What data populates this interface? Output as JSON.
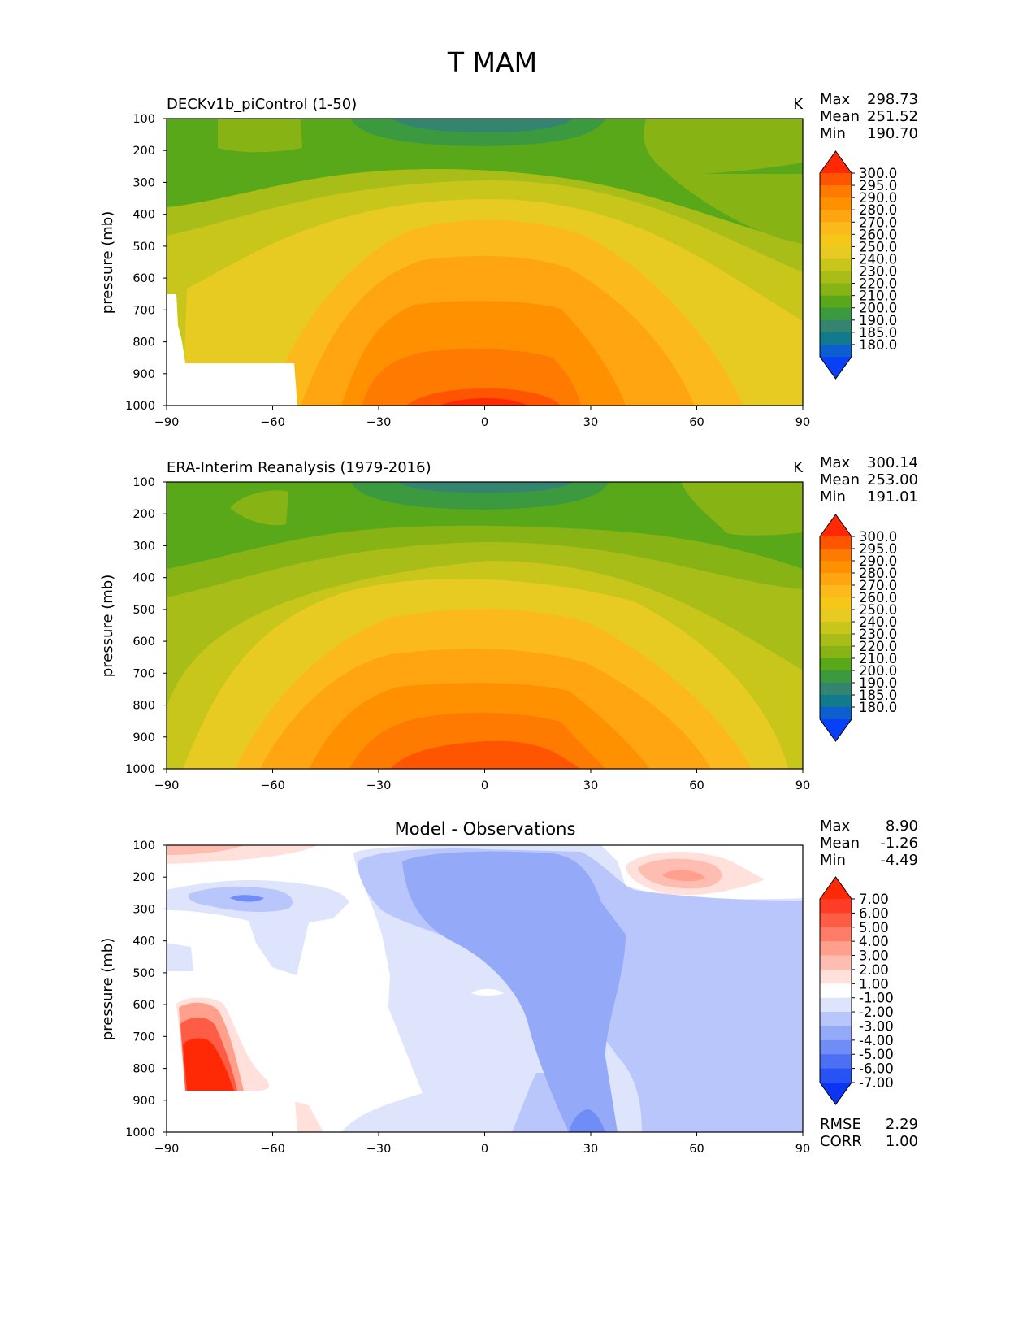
{
  "figure": {
    "title": "T MAM"
  },
  "chart_data": [
    {
      "type": "heatmap",
      "title": "DECKv1b_piControl (1-50)",
      "units": "K",
      "ylabel": "pressure (mb)",
      "xlabel": "",
      "x_ticks": [
        "−90",
        "−60",
        "−30",
        "0",
        "30",
        "60",
        "90"
      ],
      "y_ticks": [
        "100",
        "200",
        "300",
        "400",
        "500",
        "600",
        "700",
        "800",
        "900",
        "1000"
      ],
      "xlim": [
        -90,
        90
      ],
      "ylim": [
        1000,
        100
      ],
      "stats": [
        {
          "label": "Max",
          "value": "298.73"
        },
        {
          "label": "Mean",
          "value": "251.52"
        },
        {
          "label": "Min",
          "value": "190.70"
        }
      ],
      "colorbar": {
        "levels": [
          "300.0",
          "295.0",
          "290.0",
          "280.0",
          "270.0",
          "260.0",
          "250.0",
          "240.0",
          "230.0",
          "220.0",
          "210.0",
          "200.0",
          "190.0",
          "185.0",
          "180.0"
        ],
        "colors": [
          "#ff2a05",
          "#ff5500",
          "#ff7a00",
          "#ff9100",
          "#ffa512",
          "#fcb91c",
          "#f5c718",
          "#e8cb22",
          "#c9c61b",
          "#a9bd19",
          "#87b315",
          "#58a81a",
          "#3b9a40",
          "#338570",
          "#117a8c",
          "#0d5fcf",
          "#0840f5"
        ]
      },
      "contours": {
        "min": 190.7,
        "max": 298.73
      }
    },
    {
      "type": "heatmap",
      "title": "ERA-Interim Reanalysis (1979-2016)",
      "units": "K",
      "ylabel": "pressure (mb)",
      "xlabel": "",
      "x_ticks": [
        "−90",
        "−60",
        "−30",
        "0",
        "30",
        "60",
        "90"
      ],
      "y_ticks": [
        "100",
        "200",
        "300",
        "400",
        "500",
        "600",
        "700",
        "800",
        "900",
        "1000"
      ],
      "xlim": [
        -90,
        90
      ],
      "ylim": [
        1000,
        100
      ],
      "stats": [
        {
          "label": "Max",
          "value": "300.14"
        },
        {
          "label": "Mean",
          "value": "253.00"
        },
        {
          "label": "Min",
          "value": "191.01"
        }
      ],
      "colorbar": {
        "levels": [
          "300.0",
          "295.0",
          "290.0",
          "280.0",
          "270.0",
          "260.0",
          "250.0",
          "240.0",
          "230.0",
          "220.0",
          "210.0",
          "200.0",
          "190.0",
          "185.0",
          "180.0"
        ],
        "colors": [
          "#ff2a05",
          "#ff5500",
          "#ff7a00",
          "#ff9100",
          "#ffa512",
          "#fcb91c",
          "#f5c718",
          "#e8cb22",
          "#c9c61b",
          "#a9bd19",
          "#87b315",
          "#58a81a",
          "#3b9a40",
          "#338570",
          "#117a8c",
          "#0d5fcf",
          "#0840f5"
        ]
      },
      "contours": {
        "min": 191.01,
        "max": 300.14
      }
    },
    {
      "type": "heatmap",
      "title": "Model - Observations",
      "units": "",
      "ylabel": "pressure (mb)",
      "xlabel": "",
      "x_ticks": [
        "−90",
        "−60",
        "−30",
        "0",
        "30",
        "60",
        "90"
      ],
      "y_ticks": [
        "100",
        "200",
        "300",
        "400",
        "500",
        "600",
        "700",
        "800",
        "900",
        "1000"
      ],
      "xlim": [
        -90,
        90
      ],
      "ylim": [
        1000,
        100
      ],
      "stats": [
        {
          "label": "Max",
          "value": "8.90"
        },
        {
          "label": "Mean",
          "value": "-1.26"
        },
        {
          "label": "Min",
          "value": "-4.49"
        }
      ],
      "colorbar": {
        "levels": [
          "7.00",
          "6.00",
          "5.00",
          "4.00",
          "3.00",
          "2.00",
          "1.00",
          "-1.00",
          "-2.00",
          "-3.00",
          "-4.00",
          "-5.00",
          "-6.00",
          "-7.00"
        ],
        "colors": [
          "#ff2a05",
          "#ff3d26",
          "#ff5c45",
          "#ff7d68",
          "#ff9f8c",
          "#ffbcb0",
          "#ffe0da",
          "#ffffff",
          "#dde4fc",
          "#b9c6fb",
          "#94a9f8",
          "#708cf6",
          "#4c6ff4",
          "#2852f3",
          "#0a35f2"
        ]
      },
      "contours": {
        "min": -4.49,
        "max": 8.9
      },
      "footer_stats": [
        {
          "label": "RMSE",
          "value": "2.29"
        },
        {
          "label": "CORR",
          "value": "1.00"
        }
      ]
    }
  ]
}
